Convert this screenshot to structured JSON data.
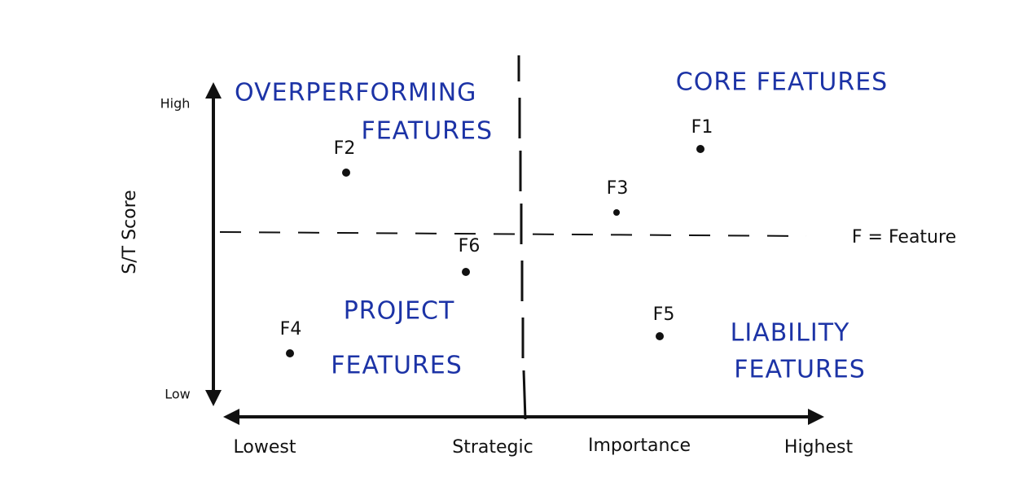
{
  "y_axis": {
    "label": "S/T Score",
    "high": "High",
    "low": "Low"
  },
  "x_axis": {
    "lowest": "Lowest",
    "label_words": [
      "Strategic",
      "Importance"
    ],
    "highest": "Highest"
  },
  "quadrants": [
    {
      "lines": [
        "OVERPERFORMING",
        "FEATURES"
      ]
    },
    {
      "lines": [
        "CORE FEATURES"
      ]
    },
    {
      "lines": [
        "PROJECT",
        "FEATURES"
      ]
    },
    {
      "lines": [
        "LIABILITY",
        "FEATURES"
      ]
    }
  ],
  "points": [
    {
      "label": "F1"
    },
    {
      "label": "F2"
    },
    {
      "label": "F3"
    },
    {
      "label": "F4"
    },
    {
      "label": "F5"
    },
    {
      "label": "F6"
    }
  ],
  "legend": "F = Feature"
}
